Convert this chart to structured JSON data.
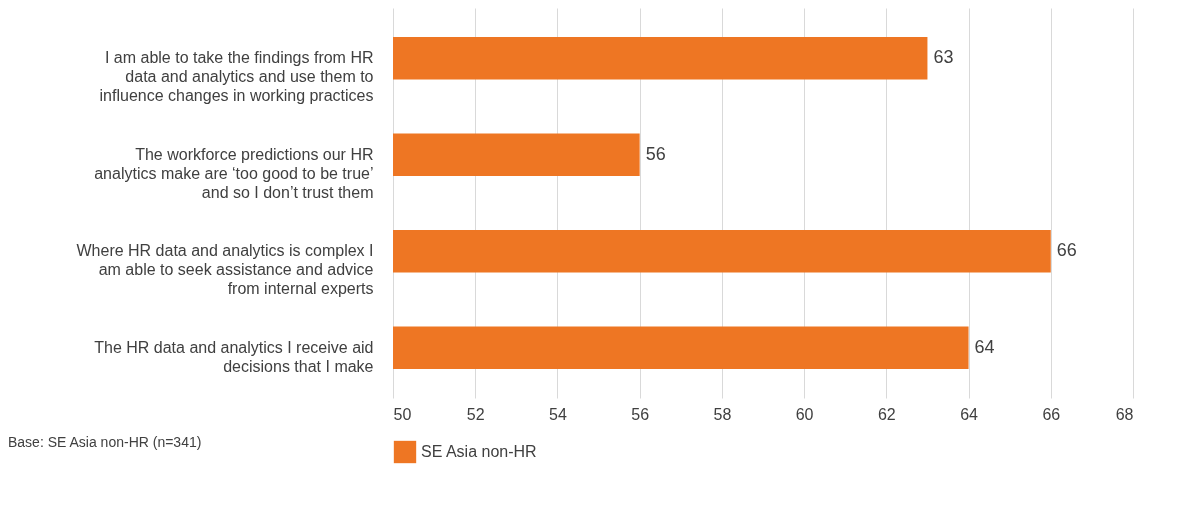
{
  "chart_data": {
    "type": "bar",
    "orientation": "horizontal",
    "categories": [
      "I am able to take the findings from HR data and analytics and use them to influence changes in working practices",
      "The workforce predictions our HR analytics make are ‘too good to be true’ and so I don’t trust them",
      "Where HR data and analytics is complex I am able to seek assistance and advice from internal experts",
      "The HR data and analytics I receive aid decisions that I make"
    ],
    "series": [
      {
        "name": "SE Asia non-HR",
        "color": "#ee7623",
        "values": [
          63,
          56,
          66,
          64
        ]
      }
    ],
    "xlim": [
      50,
      68
    ],
    "xticks": [
      50,
      52,
      54,
      56,
      58,
      60,
      62,
      64,
      66,
      68
    ],
    "grid": "x",
    "legend": "bottom",
    "data_labels": true,
    "annotations": [
      "Base: SE Asia non-HR (n=341)"
    ]
  }
}
